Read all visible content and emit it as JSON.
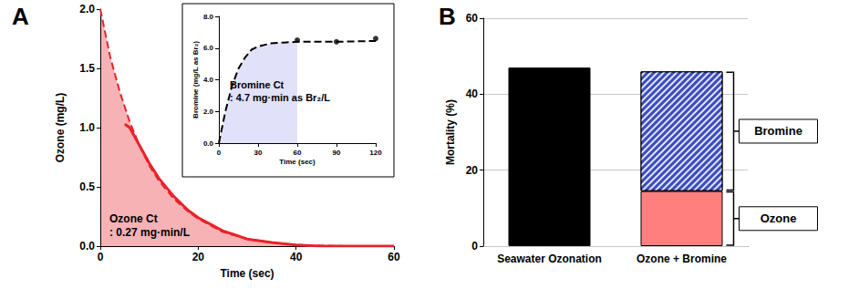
{
  "chart_data": [
    {
      "type": "line",
      "title": "A",
      "xlabel": "Time (sec)",
      "ylabel": "Ozone (mg/L)",
      "xlim": [
        0,
        60
      ],
      "xticks": [
        0,
        20,
        40,
        60
      ],
      "ylim": [
        0,
        2
      ],
      "yticks": [
        {
          "value": 0,
          "label": "0.0"
        },
        {
          "value": 0.5,
          "label": "0.5"
        },
        {
          "value": 1,
          "label": "1.0"
        },
        {
          "value": 1.5,
          "label": "1.5"
        },
        {
          "value": 2,
          "label": "2.0"
        }
      ],
      "annotation": [
        "Ozone Ct",
        ": 0.27 mg·min/L"
      ],
      "series": [
        {
          "type": "area",
          "line_style": "dashed",
          "color": "#e8232a",
          "x": [
            0,
            2,
            4,
            6,
            8,
            10,
            12,
            15,
            18,
            20,
            25,
            30,
            35,
            40,
            50,
            60
          ],
          "values": [
            2.0,
            1.6,
            1.3,
            1.05,
            0.85,
            0.68,
            0.55,
            0.4,
            0.29,
            0.23,
            0.12,
            0.06,
            0.03,
            0.01,
            0.0,
            0.0
          ]
        },
        {
          "type": "line",
          "line_style": "solid",
          "color": "#e8232a",
          "x": [
            5,
            6,
            8,
            10,
            12,
            15,
            18,
            20,
            25,
            30,
            35,
            40,
            45,
            60
          ],
          "values": [
            1.03,
            1.0,
            0.85,
            0.7,
            0.57,
            0.42,
            0.3,
            0.24,
            0.13,
            0.06,
            0.03,
            0.01,
            0.0,
            0.0
          ]
        }
      ],
      "inset": {
        "type": "line",
        "xlabel": "Time (sec)",
        "ylabel": "Bromine (mg/L as Br₂)",
        "xlim": [
          0,
          120
        ],
        "xticks": [
          0,
          30,
          60,
          90,
          120
        ],
        "ylim": [
          0,
          8
        ],
        "yticks": [
          {
            "value": 0,
            "label": "0.0"
          },
          {
            "value": 2,
            "label": "2.0"
          },
          {
            "value": 4,
            "label": "4.0"
          },
          {
            "value": 6,
            "label": "6.0"
          },
          {
            "value": 8,
            "label": "8.0"
          }
        ],
        "annotation": [
          "Bromine Ct",
          ": 4.7 mg·min as Br₂/L"
        ],
        "series": [
          {
            "type": "area",
            "line_style": "none",
            "color": "#a9a9ee",
            "x": [
              0,
              5,
              10,
              15,
              20,
              25,
              30,
              40,
              50,
              60
            ],
            "values": [
              0,
              2.0,
              3.6,
              4.7,
              5.4,
              5.9,
              6.1,
              6.3,
              6.35,
              6.4
            ]
          },
          {
            "type": "line",
            "line_style": "dashed",
            "color": "#000000",
            "x": [
              0,
              5,
              10,
              15,
              20,
              25,
              30,
              40,
              50,
              60,
              90,
              120
            ],
            "values": [
              0,
              2.0,
              3.6,
              4.7,
              5.4,
              5.9,
              6.1,
              6.3,
              6.35,
              6.4,
              6.4,
              6.45
            ]
          },
          {
            "type": "scatter",
            "marker": "circle",
            "color": "#000000",
            "x": [
              60,
              90,
              120
            ],
            "values": [
              6.5,
              6.4,
              6.6
            ]
          }
        ]
      }
    },
    {
      "type": "bar",
      "title": "B",
      "ylabel": "Mortality (%)",
      "categories": [
        "Seawater Ozonation",
        "Ozone + Bromine"
      ],
      "stacked": true,
      "grid": true,
      "ylim": [
        0,
        60
      ],
      "yticks": [
        0,
        20,
        40,
        60
      ],
      "series": [
        {
          "color": "#000000",
          "values": [
            47,
            null
          ]
        },
        {
          "name": "Ozone",
          "color": "#ff7f7f",
          "values": [
            null,
            14.5
          ]
        },
        {
          "name": "Bromine",
          "color": "#3b4cc0",
          "marker": "hatch",
          "values": [
            null,
            31.5
          ]
        }
      ]
    }
  ]
}
